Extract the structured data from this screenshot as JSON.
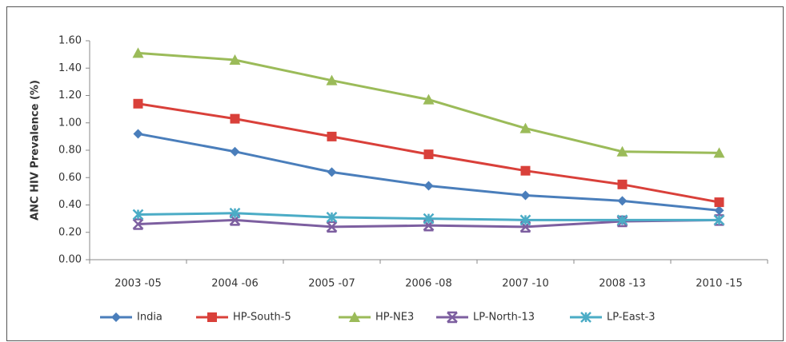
{
  "chart_data": {
    "type": "line",
    "y_label": "ANC HIV Prevalence (%)",
    "categories": [
      "2003 -05",
      "2004 -06",
      "2005 -07",
      "2006 -08",
      "2007 -10",
      "2008 -13",
      "2010 -15"
    ],
    "series": [
      {
        "name": "India",
        "color": "#4a7ebb",
        "marker": "diamond",
        "values": [
          0.92,
          0.79,
          0.64,
          0.54,
          0.47,
          0.43,
          0.36
        ]
      },
      {
        "name": "HP-South-5",
        "color": "#d9403a",
        "marker": "square",
        "values": [
          1.14,
          1.03,
          0.9,
          0.77,
          0.65,
          0.55,
          0.42
        ]
      },
      {
        "name": "HP-NE3",
        "color": "#9bbb59",
        "marker": "triangle",
        "values": [
          1.51,
          1.46,
          1.31,
          1.17,
          0.96,
          0.79,
          0.78
        ]
      },
      {
        "name": "LP-North-13",
        "color": "#7d5fa0",
        "marker": "x",
        "values": [
          0.26,
          0.29,
          0.24,
          0.25,
          0.24,
          0.28,
          0.29
        ]
      },
      {
        "name": "LP-East-3",
        "color": "#4bacc6",
        "marker": "asterisk",
        "values": [
          0.33,
          0.34,
          0.31,
          0.3,
          0.29,
          0.29,
          0.29
        ]
      }
    ],
    "ylim": [
      0,
      1.6
    ],
    "yticks": [
      {
        "value": 0,
        "label": "0.00"
      },
      {
        "value": 0.2,
        "label": "0.20"
      },
      {
        "value": 0.4,
        "label": "0.40"
      },
      {
        "value": 0.6,
        "label": "0.60"
      },
      {
        "value": 0.8,
        "label": "0.80"
      },
      {
        "value": 1.0,
        "label": "1.00"
      },
      {
        "value": 1.2,
        "label": "1.20"
      },
      {
        "value": 1.4,
        "label": "1.40"
      },
      {
        "value": 1.6,
        "label": "1.60"
      }
    ],
    "grid": false,
    "legend": "bottom"
  }
}
